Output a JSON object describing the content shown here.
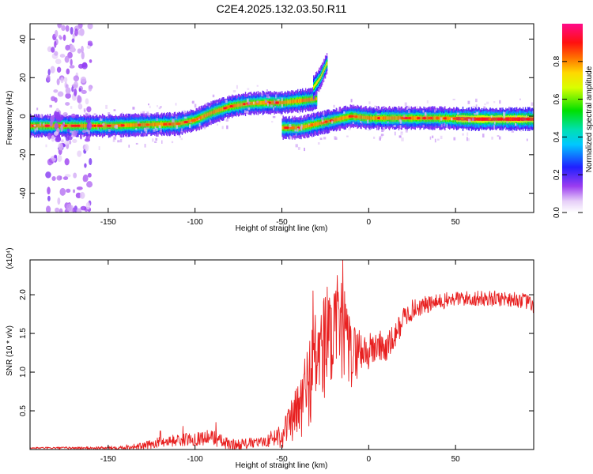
{
  "title": "C2E4.2025.132.03.50.R11",
  "chart_data": [
    {
      "type": "heatmap",
      "xlabel": "Height of straight line (km)",
      "ylabel": "Frequency (Hz)",
      "xlim": [
        -195,
        95
      ],
      "ylim": [
        -50,
        48
      ],
      "xticks": [
        -150,
        -100,
        -50,
        0,
        50
      ],
      "yticks": [
        -40,
        -20,
        0,
        20,
        40
      ],
      "colorbar": {
        "label": "Normalized spectral amplitude",
        "range": [
          0,
          1
        ],
        "ticks": [
          "0.0",
          "0.2",
          "0.4",
          "0.6",
          "0.8"
        ],
        "colormap": "white-purple-blue-cyan-green-yellow-red-pink"
      },
      "ridges": [
        {
          "x": [
            -195,
            -170,
            -150,
            -130,
            -110,
            -100,
            -90,
            -80,
            -70,
            -60,
            -50,
            -40,
            -30
          ],
          "y": [
            -5,
            -5,
            -5,
            -4.5,
            -4,
            -2,
            2,
            5,
            6.5,
            7,
            7,
            8,
            9
          ]
        },
        {
          "x": [
            -50,
            -40,
            -30,
            -20,
            -10,
            0,
            20,
            40,
            60,
            80,
            95
          ],
          "y": [
            -6,
            -6,
            -4,
            -2,
            0,
            -1,
            -1,
            -1,
            -1.5,
            -1.5,
            -1.5
          ]
        },
        {
          "x": [
            -32,
            -28,
            -24
          ],
          "y": [
            15,
            20,
            28
          ]
        }
      ],
      "features": {
        "noise_column_x": [
          -185,
          -160
        ],
        "high_freq_branch_x": [
          -35,
          -22
        ]
      }
    },
    {
      "type": "line",
      "xlabel": "Height of straight line (km)",
      "ylabel": "SNR (10 * v/v)",
      "scale_label": "(x10⁴)",
      "xlim": [
        -195,
        95
      ],
      "ylim": [
        0,
        2.45
      ],
      "xticks": [
        -150,
        -100,
        -50,
        0,
        50
      ],
      "yticks": [
        0.5,
        1.0,
        1.5,
        2.0
      ],
      "ytick_labels": [
        "0.5",
        "1.0",
        "1.5",
        "2.0"
      ],
      "color": "#e82020",
      "profile": {
        "x": [
          -195,
          -150,
          -130,
          -120,
          -100,
          -90,
          -80,
          -60,
          -50,
          -40,
          -35,
          -30,
          -25,
          -20,
          -15,
          -10,
          -5,
          0,
          5,
          10,
          15,
          20,
          25,
          30,
          40,
          50,
          60,
          70,
          80,
          90,
          95
        ],
        "y": [
          0.02,
          0.02,
          0.04,
          0.1,
          0.14,
          0.16,
          0.05,
          0.1,
          0.2,
          0.5,
          0.85,
          1.2,
          1.35,
          1.4,
          1.55,
          1.2,
          1.3,
          1.25,
          1.35,
          1.3,
          1.45,
          1.7,
          1.8,
          1.85,
          1.9,
          1.95,
          1.95,
          1.95,
          1.95,
          1.92,
          1.85
        ]
      },
      "noise_amplitude": {
        "x": [
          -195,
          -150,
          -110,
          -90,
          -60,
          -45,
          -40,
          -35,
          -30,
          -25,
          -20,
          -15,
          -10,
          -5,
          0,
          10,
          20,
          30,
          50,
          95
        ],
        "y": [
          0.01,
          0.02,
          0.08,
          0.1,
          0.06,
          0.25,
          0.45,
          0.6,
          0.7,
          0.75,
          0.65,
          0.65,
          0.45,
          0.3,
          0.25,
          0.2,
          0.15,
          0.12,
          0.1,
          0.1
        ]
      },
      "peaks": [
        {
          "x": -15,
          "y": 2.45
        },
        {
          "x": -18,
          "y": 2.25
        },
        {
          "x": -32,
          "y": 2.05
        },
        {
          "x": -24,
          "y": 2.1
        },
        {
          "x": -88,
          "y": 0.35
        },
        {
          "x": -120,
          "y": 0.24
        },
        {
          "x": -107,
          "y": 0.3
        }
      ]
    }
  ]
}
